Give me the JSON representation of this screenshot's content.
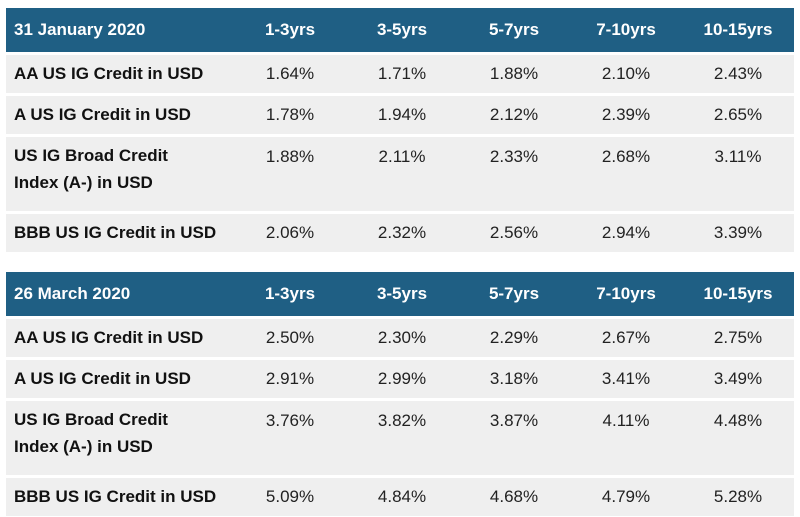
{
  "table1": {
    "date": "31 January 2020",
    "columns": [
      "1-3yrs",
      "3-5yrs",
      "5-7yrs",
      "7-10yrs",
      "10-15yrs"
    ],
    "rows": [
      {
        "label": "AA US IG Credit in USD",
        "values": [
          "1.64%",
          "1.71%",
          "1.88%",
          "2.10%",
          "2.43%"
        ]
      },
      {
        "label": "A US IG Credit in USD",
        "values": [
          "1.78%",
          "1.94%",
          "2.12%",
          "2.39%",
          "2.65%"
        ]
      },
      {
        "label_line1": "US IG Broad Credit",
        "label_line2": "Index (A-) in USD",
        "values": [
          "1.88%",
          "2.11%",
          "2.33%",
          "2.68%",
          "3.11%"
        ]
      },
      {
        "label": "BBB US IG Credit in USD",
        "values": [
          "2.06%",
          "2.32%",
          "2.56%",
          "2.94%",
          "3.39%"
        ]
      }
    ]
  },
  "table2": {
    "date": "26 March 2020",
    "columns": [
      "1-3yrs",
      "3-5yrs",
      "5-7yrs",
      "7-10yrs",
      "10-15yrs"
    ],
    "rows": [
      {
        "label": "AA US IG Credit in USD",
        "values": [
          "2.50%",
          "2.30%",
          "2.29%",
          "2.67%",
          "2.75%"
        ]
      },
      {
        "label": "A US IG Credit in USD",
        "values": [
          "2.91%",
          "2.99%",
          "3.18%",
          "3.41%",
          "3.49%"
        ]
      },
      {
        "label_line1": "US IG Broad Credit",
        "label_line2": "Index (A-) in USD",
        "values": [
          "3.76%",
          "3.82%",
          "3.87%",
          "4.11%",
          "4.48%"
        ]
      },
      {
        "label": "BBB US IG Credit in USD",
        "values": [
          "5.09%",
          "4.84%",
          "4.68%",
          "4.79%",
          "5.28%"
        ]
      }
    ]
  },
  "colors": {
    "header_bg": "#1f5f84",
    "header_text": "#ffffff",
    "row_bg": "#efefef"
  }
}
